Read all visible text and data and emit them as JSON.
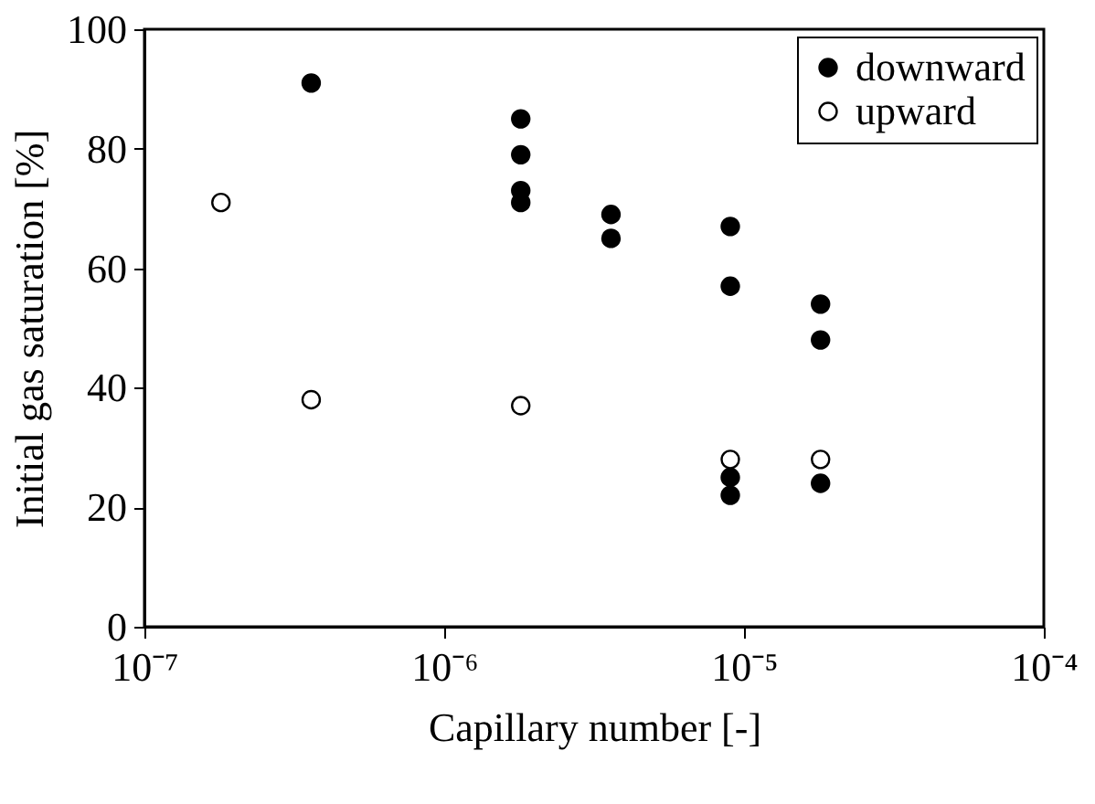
{
  "chart_data": {
    "type": "scatter",
    "xlabel": "Capillary number [-]",
    "ylabel": "Initial gas saturation [%]",
    "log": "x",
    "xlim": [
      1e-07,
      0.0001
    ],
    "ylim": [
      0,
      100
    ],
    "xticks": [
      {
        "value": 1e-07,
        "label": "10⁻⁷"
      },
      {
        "value": 1e-06,
        "label": "10⁻⁶"
      },
      {
        "value": 1e-05,
        "label": "10⁻⁵"
      },
      {
        "value": 0.0001,
        "label": "10⁻⁴"
      }
    ],
    "yticks": [
      0,
      20,
      40,
      60,
      80,
      100
    ],
    "grid": false,
    "legend": "top right",
    "marker": "circle",
    "series": [
      {
        "name": "downward",
        "color": "#000000",
        "x": [
          3.6e-07,
          1.8e-06,
          1.8e-06,
          1.8e-06,
          1.8e-06,
          3.6e-06,
          3.6e-06,
          9e-06,
          9e-06,
          9e-06,
          9e-06,
          1.8e-05,
          1.8e-05,
          1.8e-05
        ],
        "values": [
          91,
          85,
          79,
          73,
          71,
          69,
          65,
          67,
          57,
          25,
          22,
          54,
          48,
          24
        ]
      },
      {
        "name": "upward",
        "color": "#ffffff",
        "x": [
          1.8e-07,
          3.6e-07,
          1.8e-06,
          9e-06,
          1.8e-05
        ],
        "values": [
          71,
          38,
          37,
          28,
          28
        ]
      }
    ]
  }
}
